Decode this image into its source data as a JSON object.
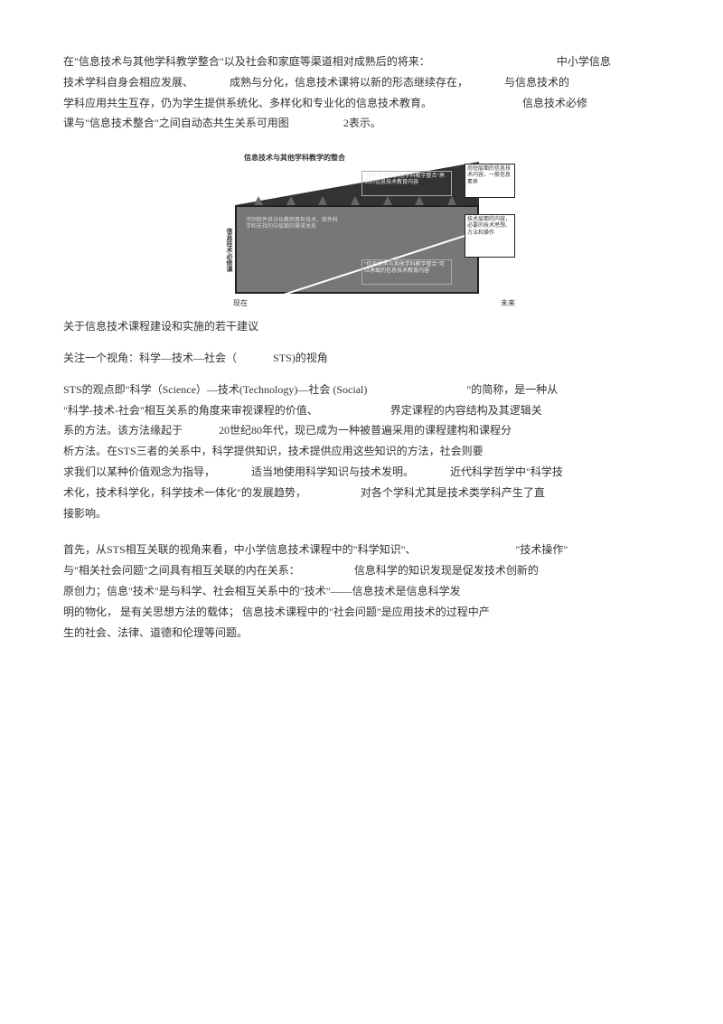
{
  "p1_l1a": "在\"信息技术与其他学科教学整合\"以及社会和家庭等渠道相对成熟后的将来：",
  "p1_l1b": "中小学信息",
  "p1_l2a": "技术学科自身会相应发展、",
  "p1_l2b": "成熟与分化，信息技术课将以新的形态继续存在，",
  "p1_l2c": "与信息技术的",
  "p1_l3a": "学科应用共生互存，仍为学生提供系统化、多样化和专业化的信息技术教育。",
  "p1_l3b": "信息技术必修",
  "p1_l4a": "课与\"信息技术整合\"之间自动态共生关系可用图",
  "p1_l4b": "2表示。",
  "diagram": {
    "title_top": "信息技术与其他学科教学的整合",
    "box_r1": "尚短层面的信息技术内容，一般信息素养",
    "box_r2": "技术层面的内容，必要的技术思想、方法和操作",
    "inner1": "\"信息技术与其他学科教学整合\"承担的信息技术教育内容",
    "inner2": "\"信息技术与其他学科教学整合\"可以承载的信息技术教育内容",
    "inner3": "不同软件其分化教师具有技术，软件科学和支持的中层面的需求关系",
    "yaxis": "信息技术必修课",
    "xleft": "现在",
    "xright": "未来"
  },
  "p2": "关于信息技术课程建设和实施的若干建议",
  "p3a": "关注一个视角：科学—技术—社会（",
  "p3b": "STS)的视角",
  "p4_l1a": "STS的观点即\"科学（Science）—技术(Technology)—社会 (Social)",
  "p4_l1b": "\"的简称，是一种从",
  "p4_l2a": "\"科学-技术-社会\"相互关系的角度来审视课程的价值、",
  "p4_l2b": "界定课程的内容结构及其逻辑关",
  "p4_l3a": "系的方法。该方法缘起于",
  "p4_l3b": "20世纪80年代，现已成为一种被普遍采用的课程建构和课程分",
  "p4_l4": "析方法。在STS三者的关系中，科学提供知识，技术提供应用这些知识的方法，社会则要",
  "p4_l5a": "求我们以某种价值观念为指导，",
  "p4_l5b": "适当地使用科学知识与技术发明。",
  "p4_l5c": "近代科学哲学中\"科学技",
  "p4_l6a": "术化，技术科学化，科学技术一体化\"的发展趋势，",
  "p4_l6b": "对各个学科尤其是技术类学科产生了直",
  "p4_l7": "接影响。",
  "p5_l1a": "首先，从STS相互关联的视角来看，中小学信息技术课程中的\"科学知识\"、",
  "p5_l1b": "\"技术操作\"",
  "p5_l2a": "与\"相关社会问题\"之间具有相互关联的内在关系：",
  "p5_l2b": "信息科学的知识发现是促发技术创新的",
  "p5_l3": "原创力；信息\"技术\"是与科学、社会相互关系中的\"技术\"——信息技术是信息科学发",
  "p5_l4": "明的物化， 是有关思想方法的载体； 信息技术课程中的\"社会问题\"是应用技术的过程中产",
  "p5_l5": "生的社会、法律、道德和伦理等问题。"
}
